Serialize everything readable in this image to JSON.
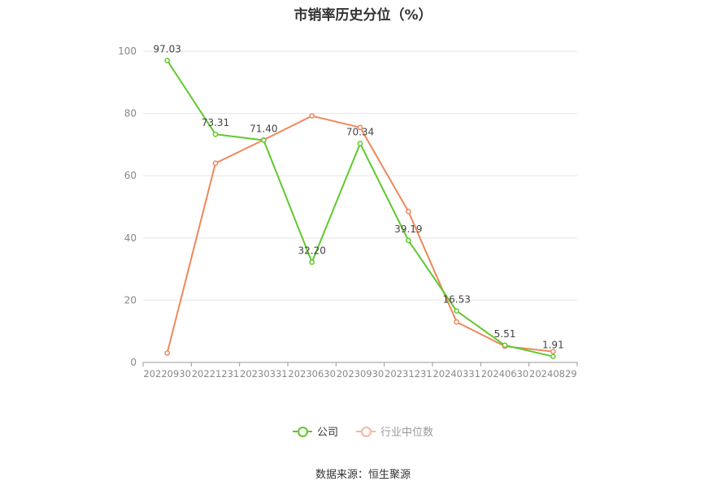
{
  "title": "市销率历史分位（%）",
  "source": "数据来源：恒生聚源",
  "colors": {
    "company": "#5fc92e",
    "industry": "#f0875a",
    "grid": "#e6e6e6",
    "axis": "#999999",
    "tick_text": "#888888",
    "label_text": "#444444",
    "legend_inactive": "#999999"
  },
  "legend": [
    {
      "label": "公司",
      "color": "#5fc92e",
      "active": true
    },
    {
      "label": "行业中位数",
      "color": "#f5b99c",
      "active": false
    }
  ],
  "chart_data": {
    "type": "line",
    "title": "市销率历史分位（%）",
    "categories": [
      "20220930",
      "20221231",
      "20230331",
      "20230630",
      "20230930",
      "20231231",
      "20240331",
      "20240630",
      "20240829"
    ],
    "ylim": [
      0,
      100
    ],
    "yticks": [
      0,
      20,
      40,
      60,
      80,
      100
    ],
    "grid": true,
    "legend_position": "bottom",
    "series": [
      {
        "name": "公司",
        "color": "#5fc92e",
        "values": [
          97.03,
          73.31,
          71.4,
          32.2,
          70.34,
          39.19,
          16.53,
          5.51,
          1.91
        ],
        "labels": [
          "97.03",
          "73.31",
          "71.40",
          "32.20",
          "70.34",
          "39.19",
          "16.53",
          "5.51",
          "1.91"
        ]
      },
      {
        "name": "行业中位数",
        "color": "#f0875a",
        "values": [
          3.0,
          64.0,
          71.5,
          79.2,
          75.5,
          48.5,
          13.0,
          5.2,
          3.5
        ]
      }
    ]
  }
}
